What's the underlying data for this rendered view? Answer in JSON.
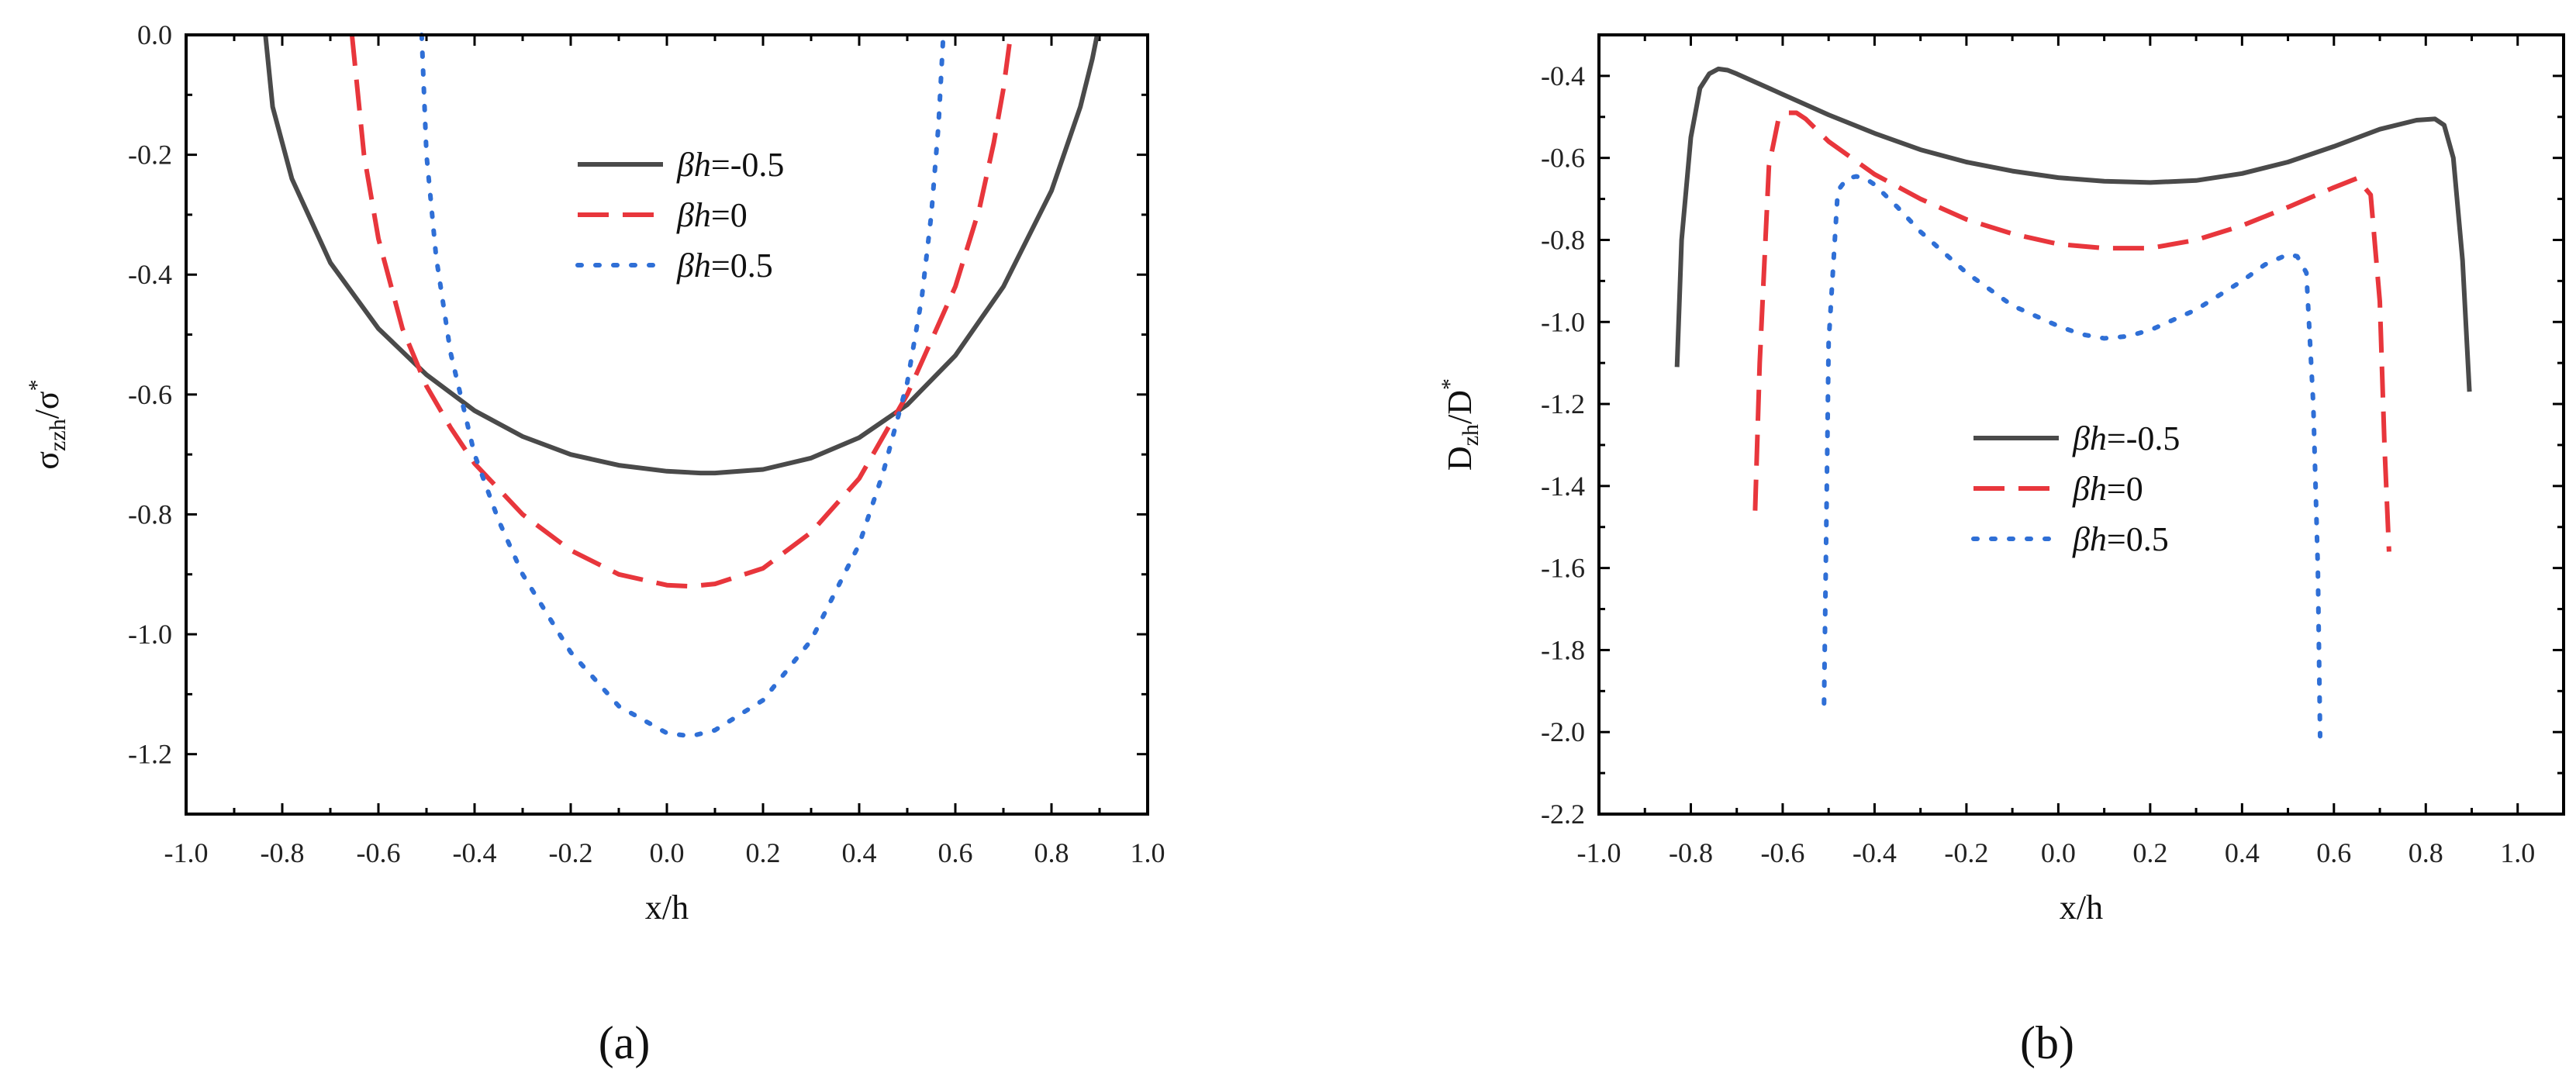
{
  "chart_data": [
    {
      "type": "line",
      "panel_label": "(a)",
      "xlabel": "x/h",
      "ylabel": "σzzh/σ*",
      "ylabel_main": "σ",
      "ylabel_sub": "zzh",
      "ylabel_mid": "/σ",
      "ylabel_sup": "*",
      "xlim": [
        -1.0,
        1.0
      ],
      "ylim": [
        -1.3,
        0.0
      ],
      "xticks": [
        -1.0,
        -0.8,
        -0.6,
        -0.4,
        -0.2,
        0.0,
        0.2,
        0.4,
        0.6,
        0.8,
        1.0
      ],
      "xtick_labels": [
        "-1.0",
        "-0.8",
        "-0.6",
        "-0.4",
        "-0.2",
        "0.0",
        "0.2",
        "0.4",
        "0.6",
        "0.8",
        "1.0"
      ],
      "yticks": [
        0.0,
        -0.2,
        -0.4,
        -0.6,
        -0.8,
        -1.0,
        -1.2
      ],
      "ytick_labels": [
        "0.0",
        "-0.2",
        "-0.4",
        "-0.6",
        "-0.8",
        "-1.0",
        "-1.2"
      ],
      "legend_position": "upper-center",
      "series": [
        {
          "name": "βh=-0.5",
          "legend_italic": "βh",
          "legend_rest": "=-0.5",
          "color": "#4a4a4a",
          "style": "solid",
          "x": [
            -0.835,
            -0.82,
            -0.78,
            -0.7,
            -0.6,
            -0.5,
            -0.4,
            -0.3,
            -0.2,
            -0.1,
            0.0,
            0.07,
            0.1,
            0.2,
            0.3,
            0.4,
            0.5,
            0.6,
            0.7,
            0.8,
            0.86,
            0.885,
            0.895
          ],
          "y": [
            0.0,
            -0.12,
            -0.24,
            -0.38,
            -0.49,
            -0.567,
            -0.627,
            -0.67,
            -0.7,
            -0.718,
            -0.728,
            -0.731,
            -0.731,
            -0.725,
            -0.706,
            -0.672,
            -0.617,
            -0.535,
            -0.42,
            -0.26,
            -0.12,
            -0.04,
            0.0
          ]
        },
        {
          "name": "βh=0",
          "legend_italic": "βh",
          "legend_rest": "=0",
          "color": "#e8363c",
          "style": "dashed",
          "x": [
            -0.655,
            -0.63,
            -0.6,
            -0.55,
            -0.5,
            -0.45,
            -0.4,
            -0.3,
            -0.2,
            -0.1,
            0.0,
            0.05,
            0.1,
            0.2,
            0.3,
            0.4,
            0.5,
            0.55,
            0.6,
            0.65,
            0.68,
            0.7,
            0.715
          ],
          "y": [
            0.0,
            -0.2,
            -0.34,
            -0.49,
            -0.586,
            -0.655,
            -0.715,
            -0.8,
            -0.86,
            -0.9,
            -0.918,
            -0.92,
            -0.916,
            -0.89,
            -0.83,
            -0.74,
            -0.6,
            -0.51,
            -0.42,
            -0.29,
            -0.18,
            -0.09,
            0.0
          ]
        },
        {
          "name": "βh=0.5",
          "legend_italic": "βh",
          "legend_rest": "=0.5",
          "color": "#2f6fd6",
          "style": "dotted",
          "x": [
            -0.51,
            -0.5,
            -0.48,
            -0.45,
            -0.4,
            -0.35,
            -0.3,
            -0.2,
            -0.1,
            0.0,
            0.05,
            0.1,
            0.2,
            0.3,
            0.4,
            0.45,
            0.5,
            0.53,
            0.55,
            0.565,
            0.575
          ],
          "y": [
            0.0,
            -0.2,
            -0.37,
            -0.53,
            -0.7,
            -0.81,
            -0.9,
            -1.03,
            -1.12,
            -1.165,
            -1.17,
            -1.16,
            -1.11,
            -1.01,
            -0.85,
            -0.73,
            -0.58,
            -0.44,
            -0.3,
            -0.15,
            0.0
          ]
        }
      ]
    },
    {
      "type": "line",
      "panel_label": "(b)",
      "xlabel": "x/h",
      "ylabel": "Dzh/D*",
      "ylabel_main": "D",
      "ylabel_sub": "zh",
      "ylabel_mid": "/D",
      "ylabel_sup": "*",
      "xlim": [
        -1.0,
        1.1
      ],
      "ylim": [
        -2.2,
        -0.3
      ],
      "xticks": [
        -1.0,
        -0.8,
        -0.6,
        -0.4,
        -0.2,
        0.0,
        0.2,
        0.4,
        0.6,
        0.8,
        1.0
      ],
      "xtick_labels": [
        "-1.0",
        "-0.8",
        "-0.6",
        "-0.4",
        "-0.2",
        "0.0",
        "0.2",
        "0.4",
        "0.6",
        "0.8",
        "1.0"
      ],
      "yticks": [
        -0.4,
        -0.6,
        -0.8,
        -1.0,
        -1.2,
        -1.4,
        -1.6,
        -1.8,
        -2.0,
        -2.2
      ],
      "ytick_labels": [
        "-0.4",
        "-0.6",
        "-0.8",
        "-1.0",
        "-1.2",
        "-1.4",
        "-1.6",
        "-1.8",
        "-2.0",
        "-2.2"
      ],
      "legend_position": "center",
      "series": [
        {
          "name": "βh=-0.5",
          "legend_italic": "βh",
          "legend_rest": "=-0.5",
          "color": "#4a4a4a",
          "style": "solid",
          "x": [
            -0.83,
            -0.82,
            -0.8,
            -0.78,
            -0.76,
            -0.74,
            -0.72,
            -0.7,
            -0.6,
            -0.5,
            -0.4,
            -0.3,
            -0.2,
            -0.1,
            0.0,
            0.1,
            0.2,
            0.3,
            0.4,
            0.5,
            0.6,
            0.7,
            0.78,
            0.82,
            0.84,
            0.86,
            0.88,
            0.895
          ],
          "y": [
            -1.11,
            -0.8,
            -0.55,
            -0.43,
            -0.395,
            -0.383,
            -0.386,
            -0.395,
            -0.445,
            -0.495,
            -0.54,
            -0.58,
            -0.61,
            -0.632,
            -0.648,
            -0.657,
            -0.66,
            -0.655,
            -0.638,
            -0.61,
            -0.572,
            -0.53,
            -0.508,
            -0.505,
            -0.52,
            -0.6,
            -0.85,
            -1.17
          ]
        },
        {
          "name": "βh=0",
          "legend_italic": "βh",
          "legend_rest": "=0",
          "color": "#e8363c",
          "style": "dashed",
          "x": [
            -0.66,
            -0.65,
            -0.63,
            -0.61,
            -0.59,
            -0.57,
            -0.55,
            -0.5,
            -0.4,
            -0.3,
            -0.2,
            -0.1,
            0.0,
            0.1,
            0.2,
            0.3,
            0.4,
            0.5,
            0.6,
            0.65,
            0.68,
            0.7,
            0.71,
            0.72
          ],
          "y": [
            -1.46,
            -1.1,
            -0.62,
            -0.51,
            -0.49,
            -0.49,
            -0.505,
            -0.56,
            -0.64,
            -0.7,
            -0.75,
            -0.785,
            -0.81,
            -0.82,
            -0.82,
            -0.8,
            -0.765,
            -0.72,
            -0.672,
            -0.65,
            -0.69,
            -0.95,
            -1.3,
            -1.56
          ]
        },
        {
          "name": "βh=0.5",
          "legend_italic": "βh",
          "legend_rest": "=0.5",
          "color": "#2f6fd6",
          "style": "dotted",
          "x": [
            -0.51,
            -0.505,
            -0.5,
            -0.48,
            -0.46,
            -0.44,
            -0.42,
            -0.4,
            -0.35,
            -0.3,
            -0.2,
            -0.1,
            0.0,
            0.05,
            0.1,
            0.15,
            0.2,
            0.3,
            0.4,
            0.45,
            0.5,
            0.52,
            0.54,
            0.555,
            0.565,
            0.57
          ],
          "y": [
            -1.93,
            -1.5,
            -1.05,
            -0.68,
            -0.65,
            -0.645,
            -0.65,
            -0.665,
            -0.72,
            -0.78,
            -0.88,
            -0.96,
            -1.01,
            -1.03,
            -1.04,
            -1.035,
            -1.02,
            -0.97,
            -0.9,
            -0.86,
            -0.835,
            -0.84,
            -0.88,
            -1.2,
            -1.6,
            -2.01
          ]
        }
      ]
    }
  ]
}
